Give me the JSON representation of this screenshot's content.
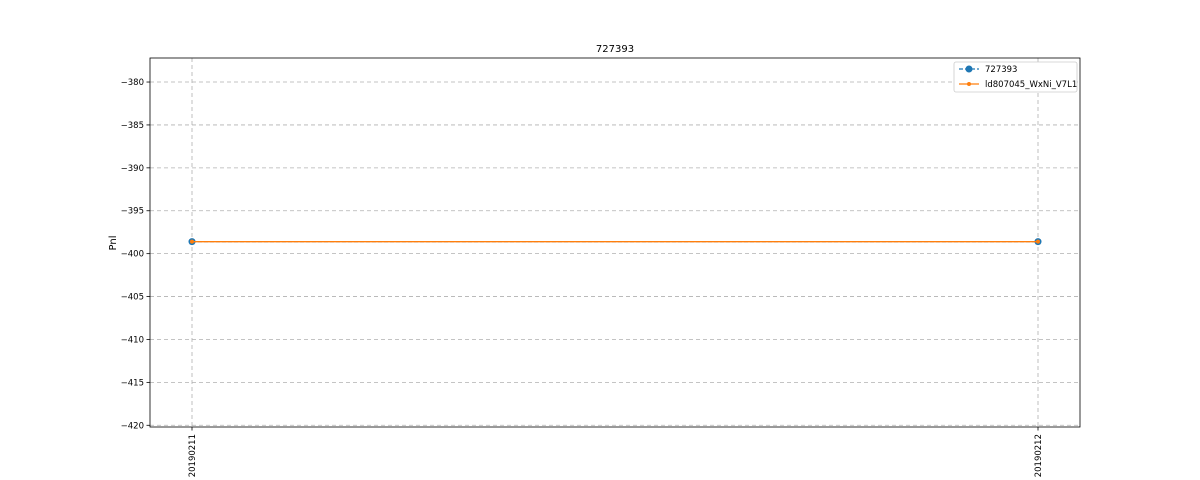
{
  "chart_data": {
    "type": "line",
    "title": "727393",
    "xlabel": "",
    "ylabel": "Pnl",
    "x": [
      "20190211",
      "20190212"
    ],
    "ylim": [
      -420.2,
      -377.2
    ],
    "yticks": [
      -380,
      -385,
      -390,
      -395,
      -400,
      -405,
      -410,
      -415,
      -420
    ],
    "ytick_labels": [
      "−380",
      "−385",
      "−390",
      "−395",
      "−400",
      "−405",
      "−410",
      "−415",
      "−420"
    ],
    "grid": true,
    "legend_position": "top-right",
    "series": [
      {
        "name": "727393",
        "color": "#1f77b4",
        "marker": "circle-large",
        "values": [
          -398.6,
          -398.6
        ]
      },
      {
        "name": "ld807045_WxNi_V7L1",
        "color": "#ff7f0e",
        "marker": "circle-small",
        "values": [
          -398.6,
          -398.6
        ]
      }
    ]
  }
}
